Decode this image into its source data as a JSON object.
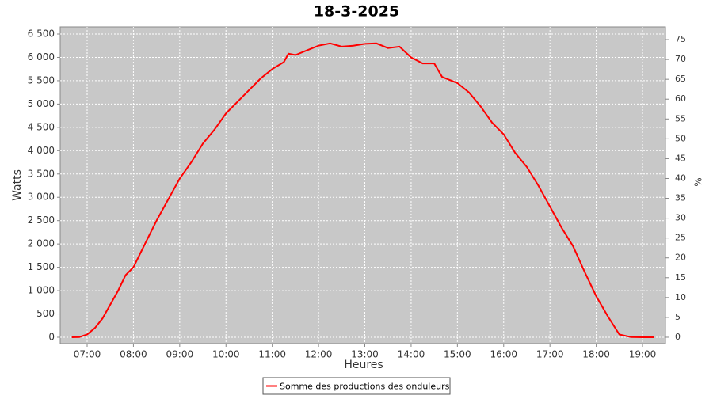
{
  "chart_data": {
    "type": "line",
    "title": "18-3-2025",
    "x_label": "Heures",
    "y_label": "Watts",
    "y2_label": "%",
    "x": [
      6.67,
      6.83,
      7.0,
      7.17,
      7.33,
      7.5,
      7.67,
      7.83,
      8.0,
      8.25,
      8.5,
      8.75,
      9.0,
      9.25,
      9.5,
      9.75,
      10.0,
      10.25,
      10.5,
      10.75,
      11.0,
      11.25,
      11.35,
      11.5,
      11.75,
      12.0,
      12.25,
      12.5,
      12.75,
      13.0,
      13.25,
      13.5,
      13.75,
      14.0,
      14.25,
      14.5,
      14.67,
      15.0,
      15.25,
      15.5,
      15.75,
      16.0,
      16.25,
      16.5,
      16.75,
      17.0,
      17.25,
      17.5,
      17.75,
      18.0,
      18.25,
      18.5,
      18.75,
      19.0,
      19.25
    ],
    "series": [
      {
        "name": "Somme des productions des onduleurs",
        "color": "#ff0000",
        "values": [
          0,
          5,
          60,
          200,
          400,
          700,
          1000,
          1330,
          1500,
          2000,
          2500,
          2950,
          3400,
          3750,
          4150,
          4450,
          4800,
          5050,
          5300,
          5550,
          5750,
          5900,
          6080,
          6050,
          6150,
          6250,
          6300,
          6230,
          6250,
          6290,
          6300,
          6200,
          6230,
          6000,
          5870,
          5870,
          5580,
          5450,
          5250,
          4950,
          4600,
          4350,
          3950,
          3650,
          3250,
          2800,
          2350,
          1950,
          1400,
          880,
          450,
          60,
          5,
          0,
          0
        ]
      }
    ],
    "xlim": [
      6.418,
      19.496
    ],
    "xticks": [
      {
        "value": 7,
        "label": "07:00"
      },
      {
        "value": 8,
        "label": "08:00"
      },
      {
        "value": 9,
        "label": "09:00"
      },
      {
        "value": 10,
        "label": "10:00"
      },
      {
        "value": 11,
        "label": "11:00"
      },
      {
        "value": 12,
        "label": "12:00"
      },
      {
        "value": 13,
        "label": "13:00"
      },
      {
        "value": 14,
        "label": "14:00"
      },
      {
        "value": 15,
        "label": "15:00"
      },
      {
        "value": 16,
        "label": "16:00"
      },
      {
        "value": 17,
        "label": "17:00"
      },
      {
        "value": 18,
        "label": "18:00"
      },
      {
        "value": 19,
        "label": "19:00"
      }
    ],
    "ylim": [
      -136,
      6653
    ],
    "yticks": [
      0,
      500,
      {
        "value": 1000,
        "label": "1 000"
      },
      {
        "value": 1500,
        "label": "1 500"
      },
      {
        "value": 2000,
        "label": "2 000"
      },
      {
        "value": 2500,
        "label": "2 500"
      },
      {
        "value": 3000,
        "label": "3 000"
      },
      {
        "value": 3500,
        "label": "3 500"
      },
      {
        "value": 4000,
        "label": "4 000"
      },
      {
        "value": 4500,
        "label": "4 500"
      },
      {
        "value": 5000,
        "label": "5 000"
      },
      {
        "value": 5500,
        "label": "5 500"
      },
      {
        "value": 6000,
        "label": "6 000"
      },
      {
        "value": 6500,
        "label": "6 500"
      }
    ],
    "y2lim": [
      -1.6,
      78.2
    ],
    "y2ticks": [
      0,
      5,
      10,
      15,
      20,
      25,
      30,
      35,
      40,
      45,
      50,
      55,
      60,
      65,
      70,
      75
    ],
    "grid": true,
    "legend": "bottom"
  }
}
